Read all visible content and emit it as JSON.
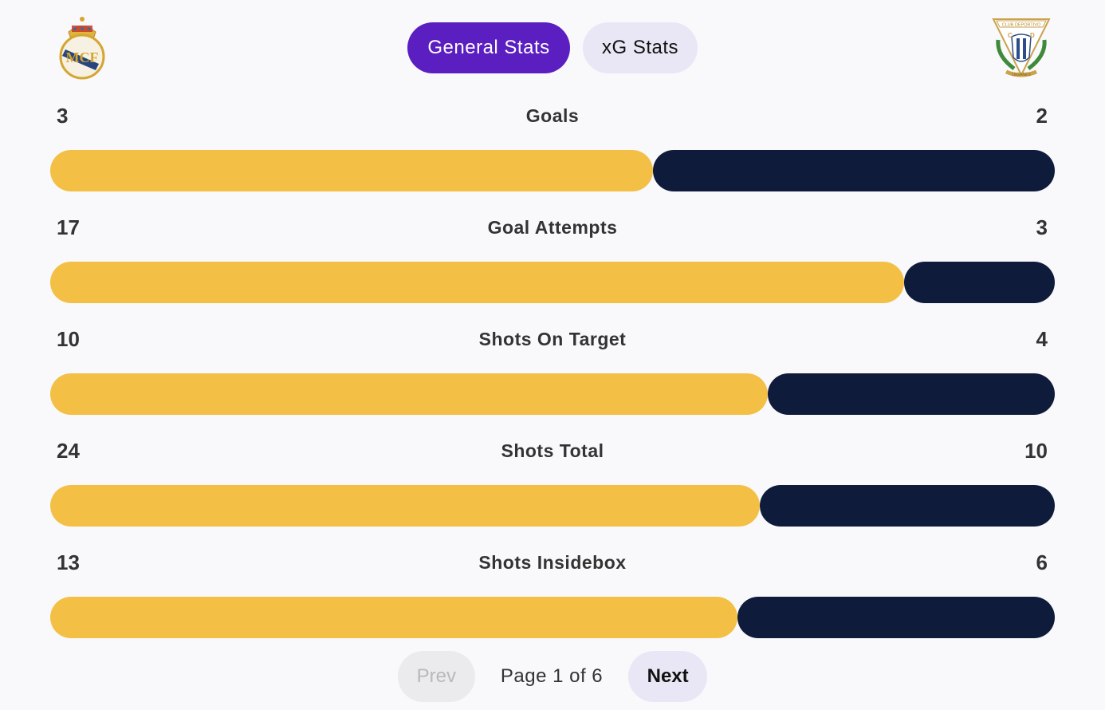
{
  "teams": {
    "home": {
      "logo_icon": "real-madrid-crest-icon",
      "bar_color": "#f3c045"
    },
    "away": {
      "logo_icon": "leganes-crest-icon",
      "bar_color": "#0f1b3b",
      "crest_text": "CLUB DEPORTIVO LEGANÉS"
    }
  },
  "tabs": [
    {
      "label": "General Stats",
      "active": true
    },
    {
      "label": "xG Stats",
      "active": false
    }
  ],
  "stats": [
    {
      "label": "Goals",
      "home": "3",
      "away": "2",
      "home_share": 0.6
    },
    {
      "label": "Goal Attempts",
      "home": "17",
      "away": "3",
      "home_share": 0.85
    },
    {
      "label": "Shots On Target",
      "home": "10",
      "away": "4",
      "home_share": 0.714
    },
    {
      "label": "Shots Total",
      "home": "24",
      "away": "10",
      "home_share": 0.706
    },
    {
      "label": "Shots Insidebox",
      "home": "13",
      "away": "6",
      "home_share": 0.684
    }
  ],
  "pagination": {
    "prev_label": "Prev",
    "next_label": "Next",
    "page_text": "Page 1 of 6",
    "prev_disabled": true
  }
}
